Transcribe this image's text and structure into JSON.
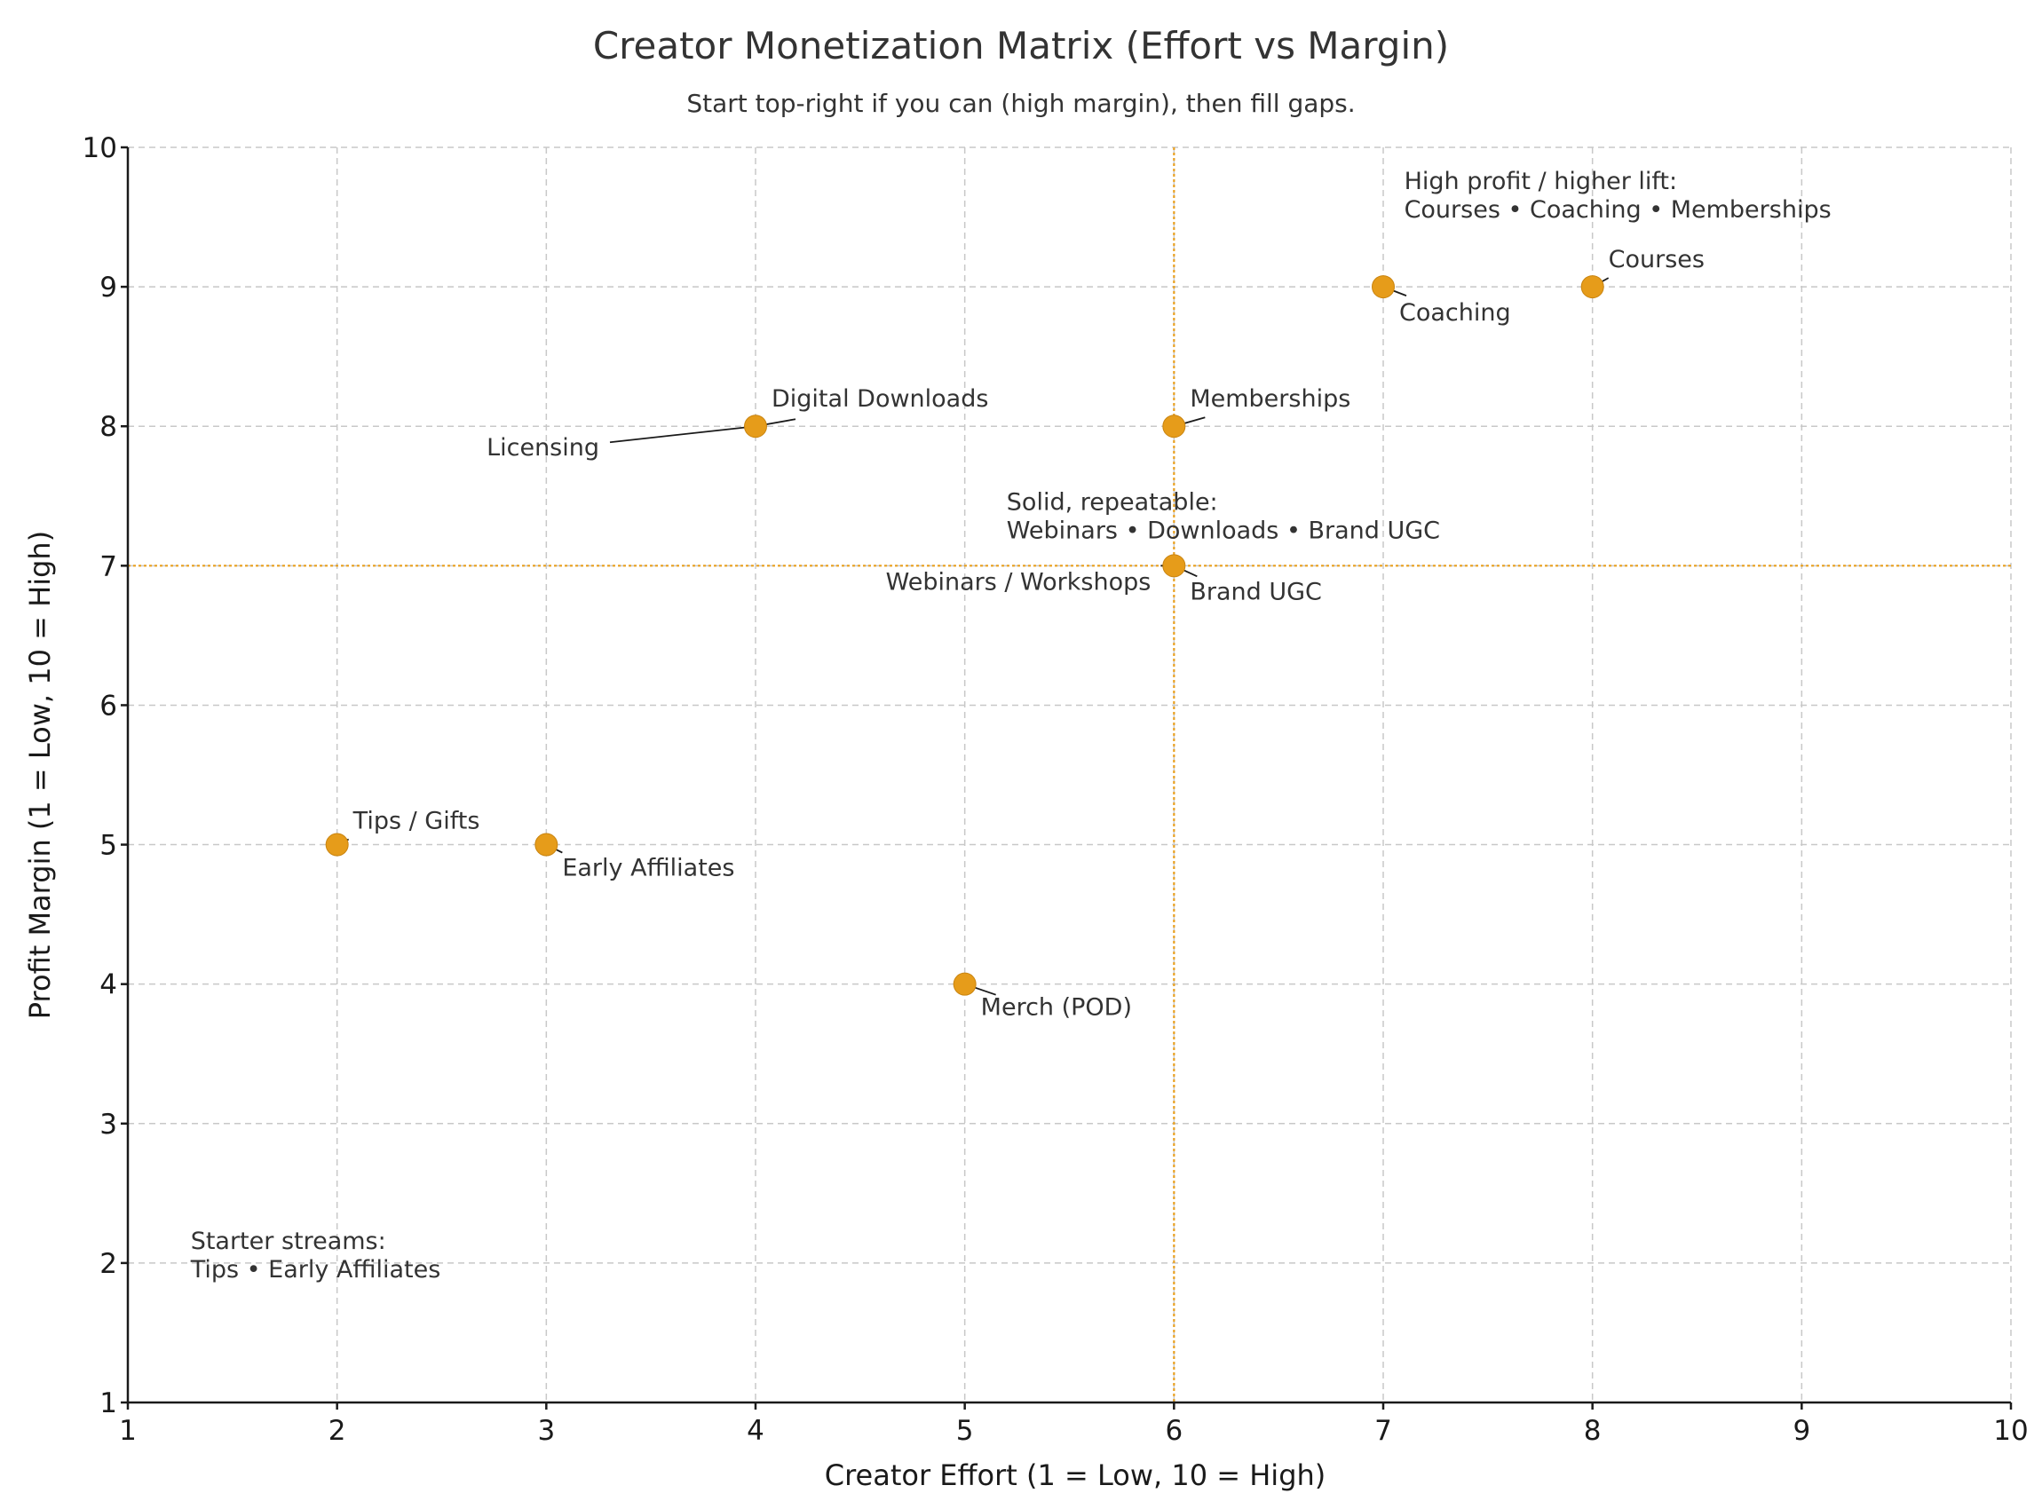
{
  "chart_data": {
    "type": "scatter",
    "title": "Creator Monetization Matrix (Effort vs Margin)",
    "subtitle": "Start top-right if you can (high margin), then fill gaps.",
    "xlabel": "Creator Effort (1 = Low, 10 = High)",
    "ylabel": "Profit Margin (1 = Low, 10 = High)",
    "xlim": [
      1,
      10
    ],
    "ylim": [
      1,
      10
    ],
    "xticks": [
      1,
      2,
      3,
      4,
      5,
      6,
      7,
      8,
      9,
      10
    ],
    "yticks": [
      1,
      2,
      3,
      4,
      5,
      6,
      7,
      8,
      9,
      10
    ],
    "grid": true,
    "reference_lines": {
      "x": 6,
      "y": 7,
      "color": "#e8a020"
    },
    "point_color": "#e69c1a",
    "points": [
      {
        "label": "Tips / Gifts",
        "x": 2,
        "y": 5
      },
      {
        "label": "Early Affiliates",
        "x": 3,
        "y": 5
      },
      {
        "label": "Merch (POD)",
        "x": 5,
        "y": 4
      },
      {
        "label": "Digital Downloads",
        "x": 4,
        "y": 8
      },
      {
        "label": "Licensing",
        "x": 4,
        "y": 8
      },
      {
        "label": "Memberships",
        "x": 6,
        "y": 8
      },
      {
        "label": "Webinars / Workshops",
        "x": 6,
        "y": 7
      },
      {
        "label": "Brand UGC",
        "x": 6,
        "y": 7
      },
      {
        "label": "Coaching",
        "x": 7,
        "y": 9
      },
      {
        "label": "Courses",
        "x": 8,
        "y": 9
      }
    ],
    "annotations": [
      {
        "id": "high",
        "lines": [
          "High profit / higher lift:",
          "Courses • Coaching • Memberships"
        ],
        "x": 7.1,
        "y": 9.7
      },
      {
        "id": "solid",
        "lines": [
          "Solid, repeatable:",
          "Webinars • Downloads • Brand UGC"
        ],
        "x": 5.2,
        "y": 7.4
      },
      {
        "id": "starter",
        "lines": [
          "Starter streams:",
          "Tips • Early Affiliates"
        ],
        "x": 1.3,
        "y": 2.1
      }
    ]
  }
}
